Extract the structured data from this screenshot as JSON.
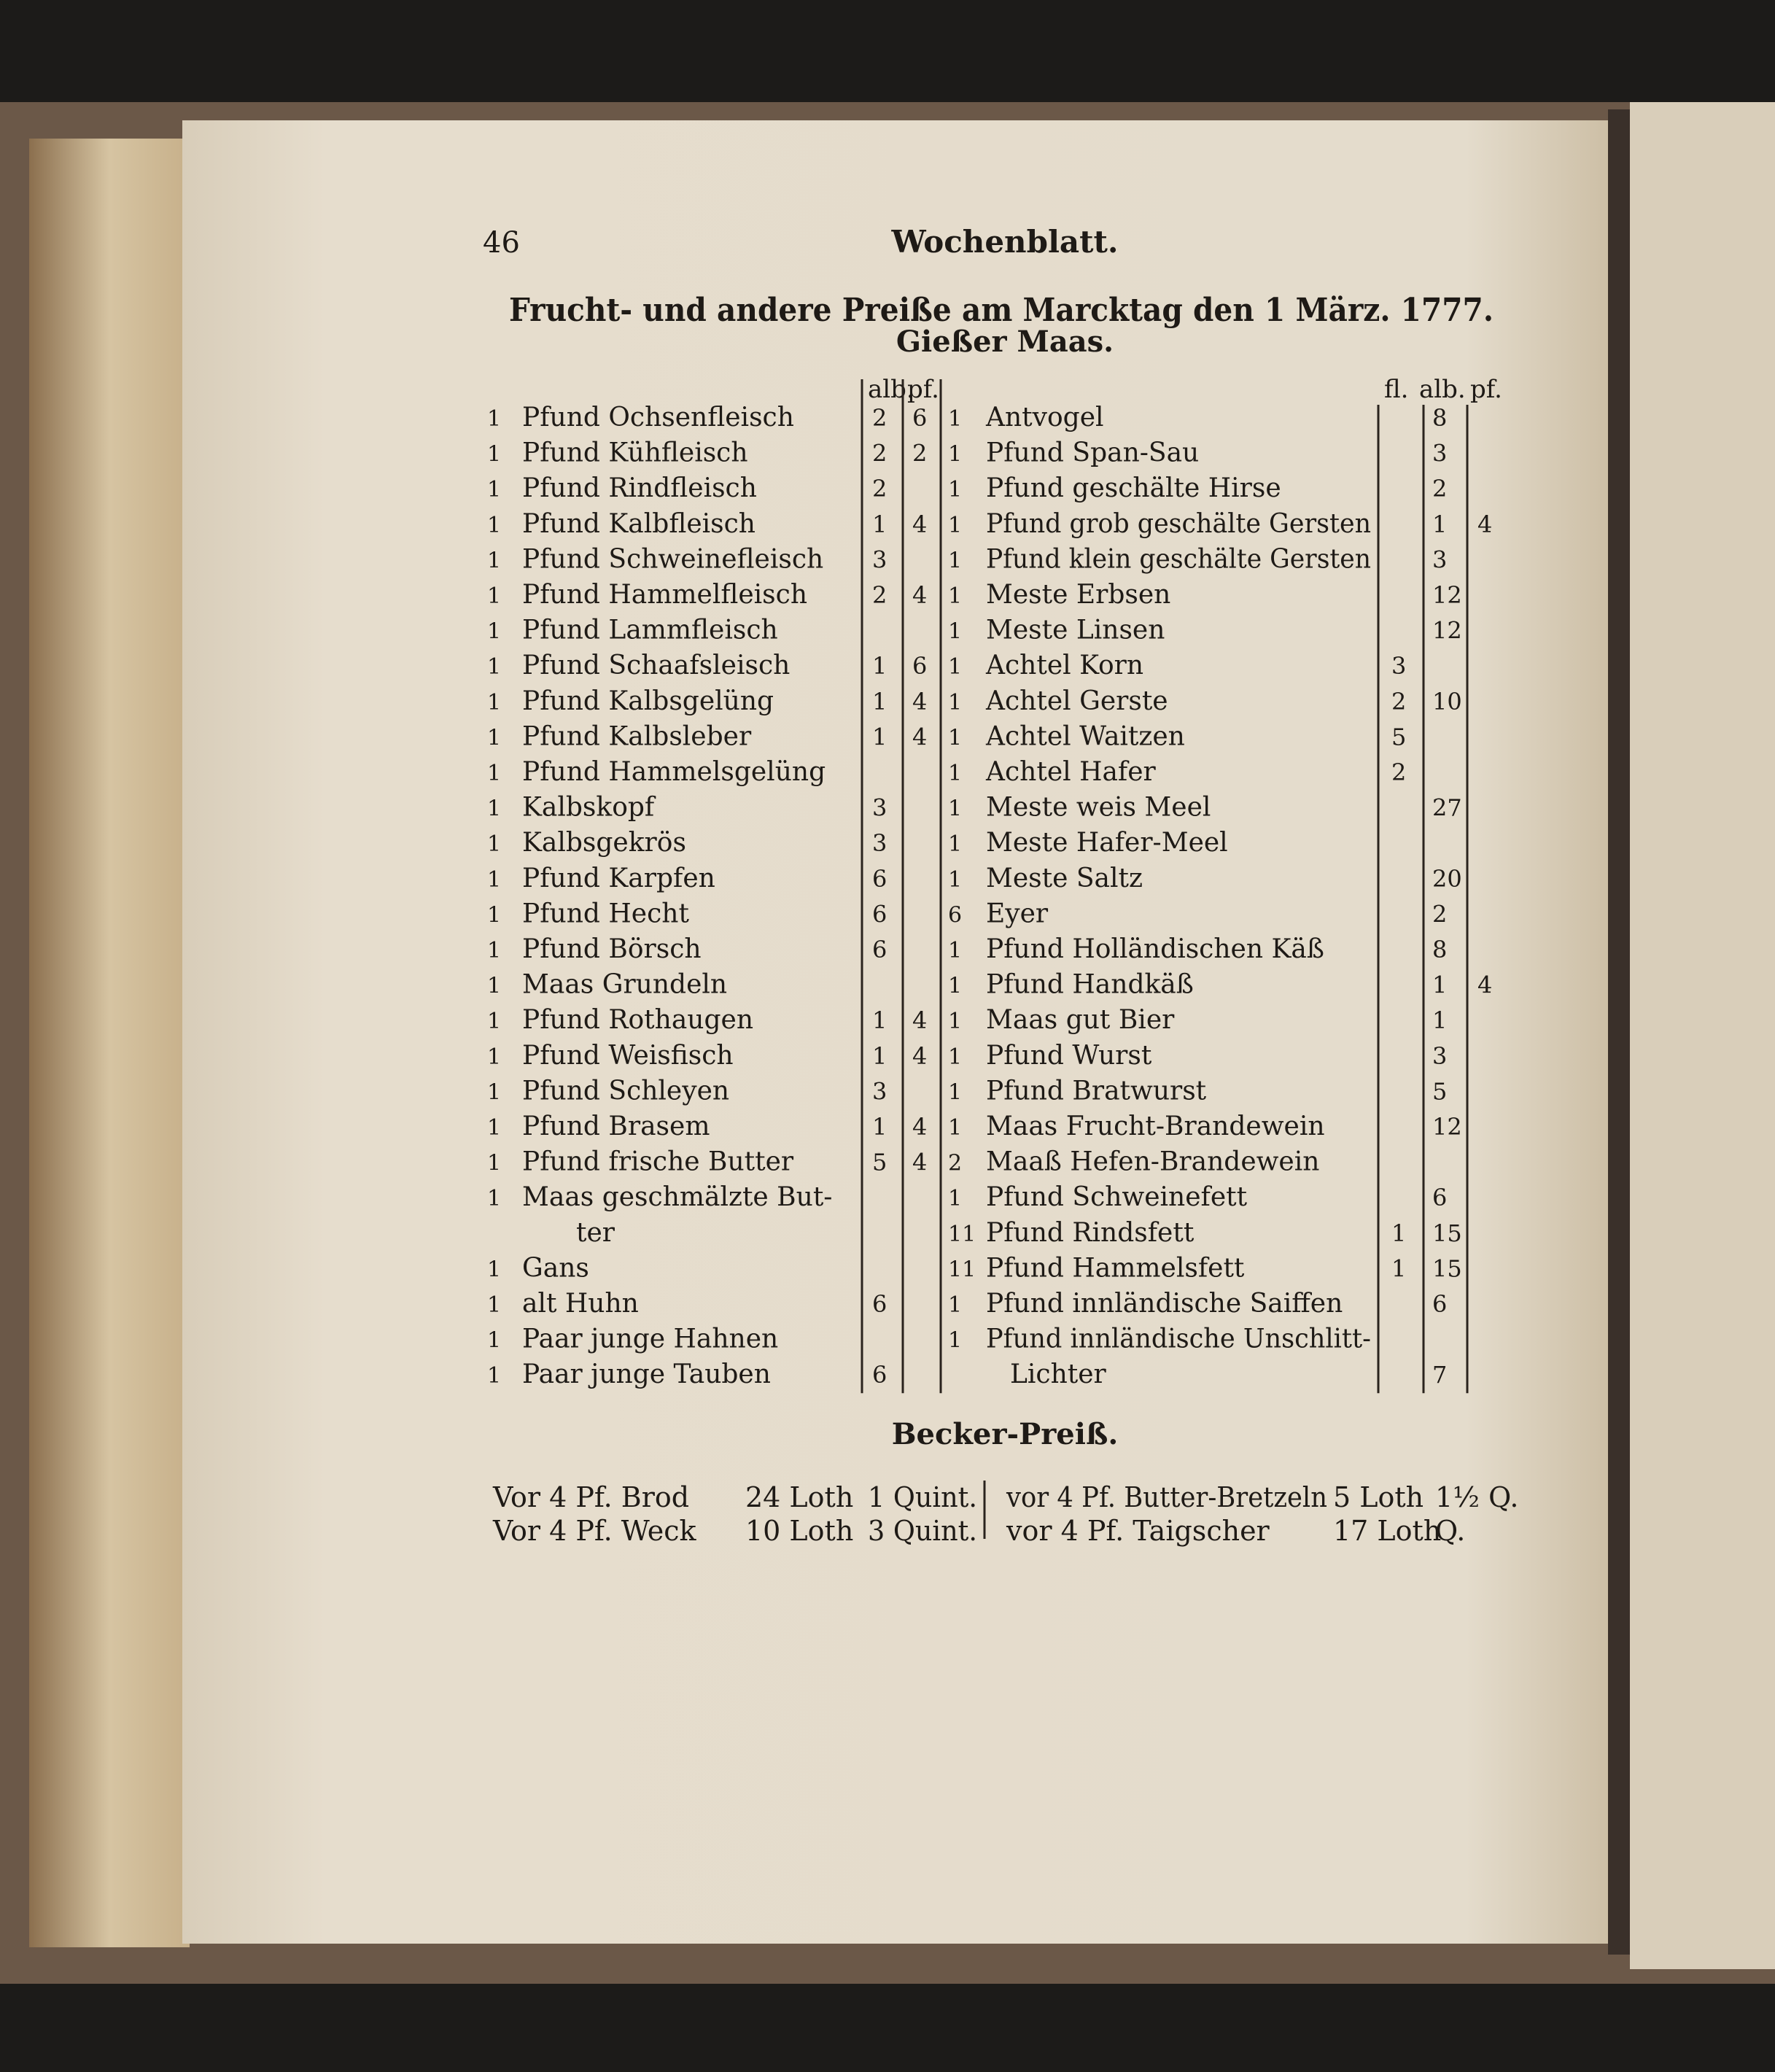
{
  "header": {
    "page_number": "46",
    "running_title": "Wochenblatt."
  },
  "title": "Frucht- und andere Preiße am Marcktag den 1 März. 1777.",
  "subtitle": "Gießer Maas.",
  "left_table": {
    "headers": [
      "alb.",
      "pf."
    ],
    "rows": [
      {
        "qty": "1",
        "item": "Pfund Ochsenfleisch",
        "alb": "2",
        "pf": "6"
      },
      {
        "qty": "1",
        "item": "Pfund Kühfleisch",
        "alb": "2",
        "pf": "2"
      },
      {
        "qty": "1",
        "item": "Pfund Rindfleisch",
        "alb": "2"
      },
      {
        "qty": "1",
        "item": "Pfund Kalbfleisch",
        "alb": "1",
        "pf": "4"
      },
      {
        "qty": "1",
        "item": "Pfund Schweinefleisch",
        "alb": "3"
      },
      {
        "qty": "1",
        "item": "Pfund Hammelfleisch",
        "alb": "2",
        "pf": "4"
      },
      {
        "qty": "1",
        "item": "Pfund Lammfleisch"
      },
      {
        "qty": "1",
        "item": "Pfund Schaafsleisch",
        "alb": "1",
        "pf": "6"
      },
      {
        "qty": "1",
        "item": "Pfund Kalbsgelüng",
        "alb": "1",
        "pf": "4"
      },
      {
        "qty": "1",
        "item": "Pfund Kalbsleber",
        "alb": "1",
        "pf": "4"
      },
      {
        "qty": "1",
        "item": "Pfund Hammelsgelüng"
      },
      {
        "qty": "1",
        "item": "Kalbskopf",
        "alb": "3"
      },
      {
        "qty": "1",
        "item": "Kalbsgekrös",
        "alb": "3"
      },
      {
        "qty": "1",
        "item": "Pfund Karpfen",
        "alb": "6"
      },
      {
        "qty": "1",
        "item": "Pfund Hecht",
        "alb": "6"
      },
      {
        "qty": "1",
        "item": "Pfund Börsch",
        "alb": "6"
      },
      {
        "qty": "1",
        "item": "Maas Grundeln"
      },
      {
        "qty": "1",
        "item": "Pfund Rothaugen",
        "alb": "1",
        "pf": "4"
      },
      {
        "qty": "1",
        "item": "Pfund Weisfisch",
        "alb": "1",
        "pf": "4"
      },
      {
        "qty": "1",
        "item": "Pfund Schleyen",
        "alb": "3"
      },
      {
        "qty": "1",
        "item": "Pfund Brasem",
        "alb": "1",
        "pf": "4"
      },
      {
        "qty": "1",
        "item": "Pfund frische Butter",
        "alb": "5",
        "pf": "4"
      },
      {
        "qty": "1",
        "item": "Maas geschmälzte But-"
      },
      {
        "item": "ter"
      },
      {
        "qty": "1",
        "item": "Gans"
      },
      {
        "qty": "1",
        "item": "alt Huhn",
        "alb": "6"
      },
      {
        "qty": "1",
        "item": "Paar junge Hahnen"
      },
      {
        "qty": "1",
        "item": "Paar junge Tauben",
        "alb": "6"
      }
    ]
  },
  "right_table": {
    "headers": [
      "fl.",
      "alb.",
      "pf."
    ],
    "rows": [
      {
        "qty": "1",
        "item": "Antvogel",
        "alb": "8"
      },
      {
        "qty": "1",
        "item": "Pfund Span-Sau",
        "alb": "3"
      },
      {
        "qty": "1",
        "item": "Pfund geschälte Hirse",
        "alb": "2"
      },
      {
        "qty": "1",
        "item": "Pfund grob geschälte Gersten",
        "alb": "1",
        "pf": "4"
      },
      {
        "qty": "1",
        "item": "Pfund klein geschälte Gersten",
        "alb": "3"
      },
      {
        "qty": "1",
        "item": "Meste Erbsen",
        "alb": "12"
      },
      {
        "qty": "1",
        "item": "Meste Linsen",
        "alb": "12"
      },
      {
        "qty": "1",
        "item": "Achtel Korn",
        "fl": "3"
      },
      {
        "qty": "1",
        "item": "Achtel Gerste",
        "fl": "2",
        "alb": "10"
      },
      {
        "qty": "1",
        "item": "Achtel Waitzen",
        "fl": "5"
      },
      {
        "qty": "1",
        "item": "Achtel Hafer",
        "fl": "2"
      },
      {
        "qty": "1",
        "item": "Meste weis Meel",
        "alb": "27"
      },
      {
        "qty": "1",
        "item": "Meste Hafer-Meel"
      },
      {
        "qty": "1",
        "item": "Meste Saltz",
        "alb": "20"
      },
      {
        "qty": "6",
        "item": "Eyer",
        "alb": "2"
      },
      {
        "qty": "1",
        "item": "Pfund Holländischen Käß",
        "alb": "8"
      },
      {
        "qty": "1",
        "item": "Pfund Handkäß",
        "alb": "1",
        "pf": "4"
      },
      {
        "qty": "1",
        "item": "Maas gut Bier",
        "alb": "1"
      },
      {
        "qty": "1",
        "item": "Pfund Wurst",
        "alb": "3"
      },
      {
        "qty": "1",
        "item": "Pfund Bratwurst",
        "alb": "5"
      },
      {
        "qty": "1",
        "item": "Maas Frucht-Brandewein",
        "alb": "12"
      },
      {
        "qty": "2",
        "item": "Maaß Hefen-Brandewein"
      },
      {
        "qty": "1",
        "item": "Pfund Schweinefett",
        "alb": "6"
      },
      {
        "qty": "11",
        "item": "Pfund Rindsfett",
        "fl": "1",
        "alb": "15"
      },
      {
        "qty": "11",
        "item": "Pfund Hammelsfett",
        "fl": "1",
        "alb": "15"
      },
      {
        "qty": "1",
        "item": "Pfund innländische Saiffen",
        "alb": "6"
      },
      {
        "qty": "1",
        "item": "Pfund innländische Unschlitt-"
      },
      {
        "item": "Lichter",
        "alb": "7"
      }
    ]
  },
  "bakery": {
    "title": "Becker-Preiß.",
    "rows": [
      {
        "left_item": "Vor 4 Pf. Brod",
        "left_weight": "24 Loth",
        "left_quint": "1 Quint.",
        "right_item": "vor 4 Pf. Butter-Bretzeln",
        "right_weight": "5 Loth",
        "right_quint": "1½ Q."
      },
      {
        "left_item": "Vor 4 Pf. Weck",
        "left_weight": "10 Loth",
        "left_quint": "3 Quint.",
        "right_item": "vor 4 Pf. Taigscher",
        "right_weight": "17 Loth",
        "right_quint": "Q."
      }
    ]
  }
}
